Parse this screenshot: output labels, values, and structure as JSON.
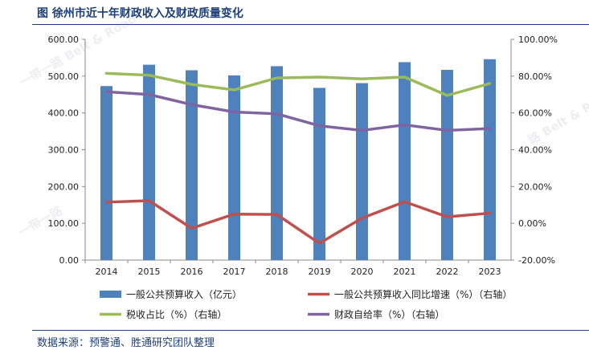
{
  "page": {
    "title": "图   徐州市近十年财政收入及财政质量变化",
    "source": "数据来源：预警通、胜通研究团队整理"
  },
  "chart_data": {
    "type": "bar",
    "categories": [
      "2014",
      "2015",
      "2016",
      "2017",
      "2018",
      "2019",
      "2020",
      "2021",
      "2022",
      "2023"
    ],
    "left_axis": {
      "min": 0,
      "max": 600,
      "step": 100,
      "ticks": [
        "0.00",
        "100.00",
        "200.00",
        "300.00",
        "400.00",
        "500.00",
        "600.00"
      ]
    },
    "right_axis": {
      "min": -20,
      "max": 100,
      "step": 20,
      "ticks": [
        "-20.00%",
        "0.00%",
        "20.00%",
        "40.00%",
        "60.00%",
        "80.00%",
        "100.00%"
      ]
    },
    "grid": false,
    "legend_position": "bottom",
    "series": [
      {
        "name": "一般公共预算收入（亿元）",
        "type": "bar",
        "axis": "left",
        "color": "#4f81bd",
        "values": [
          473,
          531,
          516,
          502,
          527,
          468,
          481,
          538,
          517,
          546
        ]
      },
      {
        "name": "一般公共预算收入同比增速（%）（右轴）",
        "type": "line",
        "axis": "right",
        "color": "#c0504d",
        "values": [
          11.5,
          12.3,
          -2.7,
          5.0,
          4.8,
          -10.9,
          2.8,
          11.7,
          3.5,
          5.5
        ]
      },
      {
        "name": "税收占比（%）（右轴）",
        "type": "line",
        "axis": "right",
        "color": "#9bbb59",
        "values": [
          81.5,
          80.5,
          75.5,
          72.5,
          79.0,
          79.5,
          78.5,
          79.5,
          69.5,
          76.0
        ]
      },
      {
        "name": "财政自给率（%）（右轴）",
        "type": "line",
        "axis": "right",
        "color": "#8064a2",
        "values": [
          71.5,
          70.0,
          64.5,
          60.5,
          59.5,
          53.0,
          50.5,
          53.5,
          50.5,
          51.5
        ]
      }
    ]
  }
}
